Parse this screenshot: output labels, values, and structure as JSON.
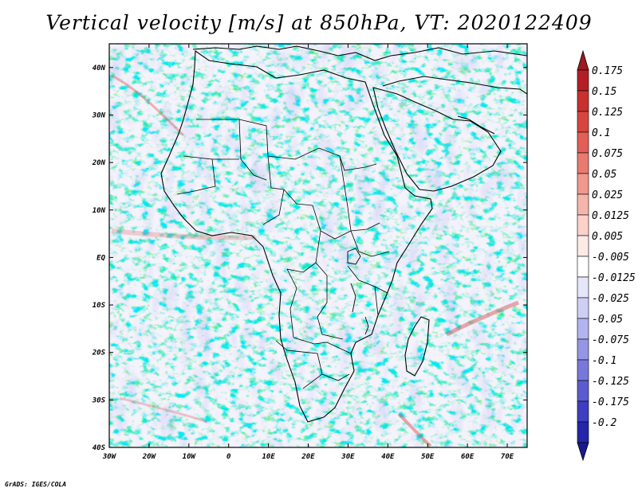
{
  "title": "Vertical velocity [m/s] at 850hPa, VT: 2020122409",
  "footer": "GrADS: IGES/COLA",
  "map": {
    "lon_range": [
      -30,
      75
    ],
    "lat_range": [
      -40,
      45
    ],
    "x_ticks": [
      {
        "lon": -30,
        "label": "30W"
      },
      {
        "lon": -20,
        "label": "20W"
      },
      {
        "lon": -10,
        "label": "10W"
      },
      {
        "lon": 0,
        "label": "0"
      },
      {
        "lon": 10,
        "label": "10E"
      },
      {
        "lon": 20,
        "label": "20E"
      },
      {
        "lon": 30,
        "label": "30E"
      },
      {
        "lon": 40,
        "label": "40E"
      },
      {
        "lon": 50,
        "label": "50E"
      },
      {
        "lon": 60,
        "label": "60E"
      },
      {
        "lon": 70,
        "label": "70E"
      }
    ],
    "y_ticks": [
      {
        "lat": 40,
        "label": "40N"
      },
      {
        "lat": 30,
        "label": "30N"
      },
      {
        "lat": 20,
        "label": "20N"
      },
      {
        "lat": 10,
        "label": "10N"
      },
      {
        "lat": 0,
        "label": "EQ"
      },
      {
        "lat": -10,
        "label": "10S"
      },
      {
        "lat": -20,
        "label": "20S"
      },
      {
        "lat": -30,
        "label": "30S"
      },
      {
        "lat": -40,
        "label": "40S"
      }
    ]
  },
  "colorbar": {
    "levels": [
      {
        "label": "0.175",
        "color": "#b41f26"
      },
      {
        "label": "0.15",
        "color": "#c8312f"
      },
      {
        "label": "0.125",
        "color": "#d8453f"
      },
      {
        "label": "0.1",
        "color": "#e25e56"
      },
      {
        "label": "0.075",
        "color": "#ea7a70"
      },
      {
        "label": "0.05",
        "color": "#f1978d"
      },
      {
        "label": "0.025",
        "color": "#f6b5ac"
      },
      {
        "label": "0.0125",
        "color": "#fbd1ca"
      },
      {
        "label": "0.005",
        "color": "#fde9e5"
      },
      {
        "label": "-0.005",
        "color": "#ffffff"
      },
      {
        "label": "-0.0125",
        "color": "#e6e6fb"
      },
      {
        "label": "-0.025",
        "color": "#cfcff6"
      },
      {
        "label": "-0.05",
        "color": "#b3b3f0"
      },
      {
        "label": "-0.075",
        "color": "#9595e6"
      },
      {
        "label": "-0.1",
        "color": "#7878dc"
      },
      {
        "label": "-0.125",
        "color": "#5b5bd0"
      },
      {
        "label": "-0.175",
        "color": "#3e3ec2"
      },
      {
        "label": "-0.2",
        "color": "#2525aa"
      }
    ],
    "top_arrow_color": "#9c1a20",
    "bottom_arrow_color": "#19198f",
    "bottom_color": "#2a2ab0"
  }
}
